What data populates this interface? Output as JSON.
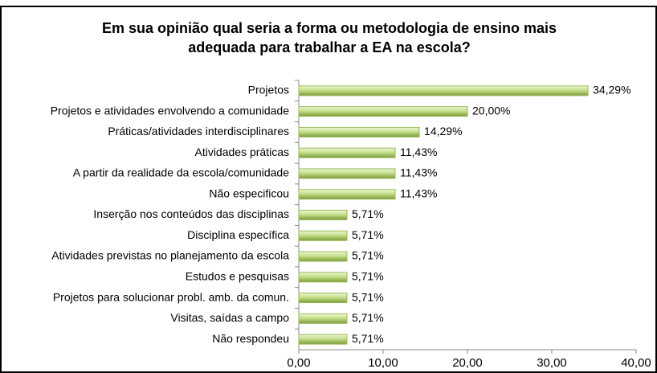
{
  "chart_data": {
    "type": "bar",
    "orientation": "horizontal",
    "title": [
      "Em sua opinião qual seria a forma ou metodologia de ensino mais",
      "adequada para trabalhar a EA na escola?"
    ],
    "categories": [
      "Projetos",
      "Projetos e atividades envolvendo a comunidade",
      "Práticas/atividades interdisciplinares",
      "Atividades práticas",
      "A partir da realidade da escola/comunidade",
      "Não especificou",
      "Inserção nos conteúdos das disciplinas",
      "Disciplina específica",
      "Atividades previstas no planejamento da escola",
      "Estudos e pesquisas",
      "Projetos para solucionar probl. amb. da comun.",
      "Visitas, saídas a campo",
      "Não respondeu"
    ],
    "values": [
      34.29,
      20.0,
      14.29,
      11.43,
      11.43,
      11.43,
      5.71,
      5.71,
      5.71,
      5.71,
      5.71,
      5.71,
      5.71
    ],
    "value_labels": [
      "34,29%",
      "20,00%",
      "14,29%",
      "11,43%",
      "11,43%",
      "11,43%",
      "5,71%",
      "5,71%",
      "5,71%",
      "5,71%",
      "5,71%",
      "5,71%",
      "5,71%"
    ],
    "color": "#9bbb59",
    "xlim": [
      0,
      40
    ],
    "xticks": [
      {
        "value": 0,
        "label": "0,00"
      },
      {
        "value": 10,
        "label": "10,00"
      },
      {
        "value": 20,
        "label": "20,00"
      },
      {
        "value": 30,
        "label": "30,00"
      },
      {
        "value": 40,
        "label": "40,00"
      }
    ],
    "grid": false
  }
}
